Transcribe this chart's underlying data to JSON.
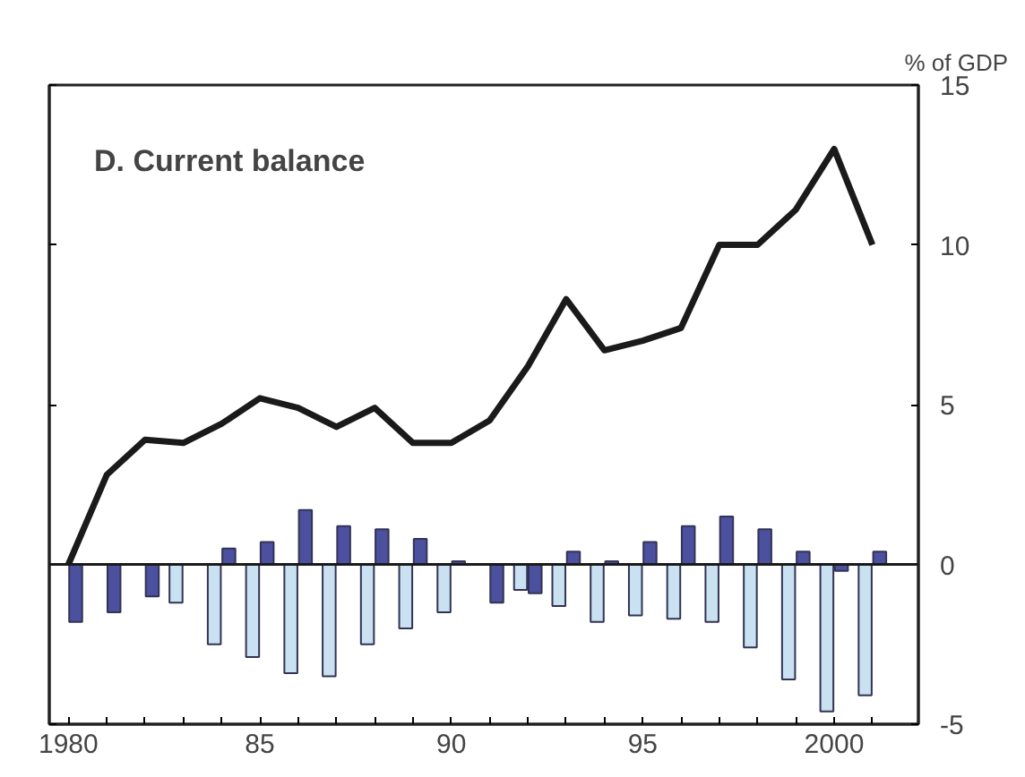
{
  "chart_data": {
    "type": "bar",
    "title": "D. Current balance",
    "ylabel": "% of GDP",
    "x": [
      1980,
      1981,
      1982,
      1983,
      1984,
      1985,
      1986,
      1987,
      1988,
      1989,
      1990,
      1991,
      1992,
      1993,
      1994,
      1995,
      1996,
      1997,
      1998,
      1999,
      2000,
      2001
    ],
    "series": [
      {
        "color": "#c9e1f1",
        "values": [
          null,
          null,
          null,
          -1.2,
          -2.5,
          -2.9,
          -3.4,
          -3.5,
          -2.5,
          -2.0,
          -1.5,
          null,
          -0.8,
          -1.3,
          -1.8,
          -1.6,
          -1.7,
          -1.8,
          -2.6,
          -3.6,
          -4.6,
          -4.1
        ]
      },
      {
        "color": "#4b509f",
        "values": [
          -1.8,
          -1.5,
          -1.0,
          null,
          0.5,
          0.7,
          1.7,
          1.2,
          1.1,
          0.8,
          0.1,
          -1.2,
          -0.9,
          0.4,
          0.1,
          0.7,
          1.2,
          1.5,
          1.1,
          0.4,
          -0.2,
          0.4
        ]
      },
      {
        "type": "line",
        "color": "#1a1a1a",
        "values": [
          0,
          2.8,
          3.9,
          3.8,
          4.4,
          5.2,
          4.9,
          4.3,
          4.9,
          3.8,
          3.8,
          4.5,
          6.2,
          8.3,
          6.7,
          7.0,
          7.4,
          10.0,
          10.0,
          11.1,
          13.0,
          10.0
        ]
      }
    ],
    "xlim": [
      1979.5,
      2002.2
    ],
    "xticks": [
      1980,
      {
        "value": 1981,
        "label": null
      },
      {
        "value": 1982,
        "label": null
      },
      {
        "value": 1983,
        "label": null
      },
      {
        "value": 1984,
        "label": null
      },
      {
        "value": 1985,
        "label": "85"
      },
      {
        "value": 1986,
        "label": null
      },
      {
        "value": 1987,
        "label": null
      },
      {
        "value": 1988,
        "label": null
      },
      {
        "value": 1989,
        "label": null
      },
      {
        "value": 1990,
        "label": "90"
      },
      {
        "value": 1991,
        "label": null
      },
      {
        "value": 1992,
        "label": null
      },
      {
        "value": 1993,
        "label": null
      },
      {
        "value": 1994,
        "label": null
      },
      {
        "value": 1995,
        "label": "95"
      },
      {
        "value": 1996,
        "label": null
      },
      {
        "value": 1997,
        "label": null
      },
      {
        "value": 1998,
        "label": null
      },
      {
        "value": 1999,
        "label": null
      },
      2000,
      {
        "value": 2001,
        "label": null
      }
    ],
    "ylim": [
      -5,
      15
    ],
    "yticks": [
      -5,
      0,
      5,
      10,
      15
    ],
    "ref_lines": [
      {
        "axis": "y",
        "value": 0,
        "color": "#1a1a1a"
      }
    ],
    "grid": false
  }
}
